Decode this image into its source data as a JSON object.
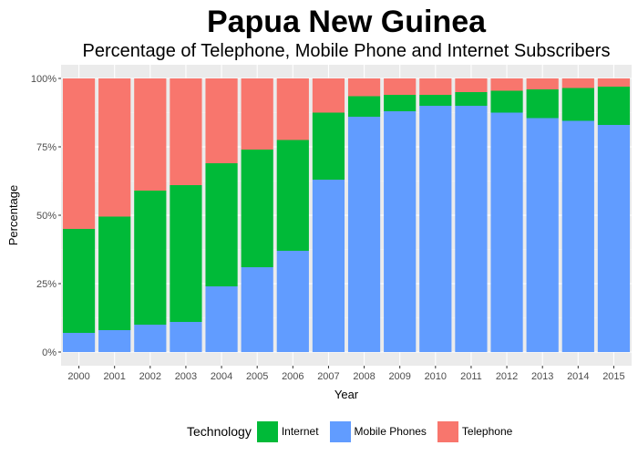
{
  "chart_data": {
    "type": "bar",
    "stacked": true,
    "title": "Papua New Guinea",
    "subtitle": "Percentage of Telephone, Mobile Phone and Internet Subscribers",
    "xlabel": "Year",
    "ylabel": "Percentage",
    "ylim": [
      0,
      1
    ],
    "yticks": [
      "0%",
      "25%",
      "50%",
      "75%",
      "100%"
    ],
    "categories": [
      "2000",
      "2001",
      "2002",
      "2003",
      "2004",
      "2005",
      "2006",
      "2007",
      "2008",
      "2009",
      "2010",
      "2011",
      "2012",
      "2013",
      "2014",
      "2015"
    ],
    "series": [
      {
        "name": "Mobile Phones",
        "color": "#619CFF",
        "values": [
          0.07,
          0.08,
          0.1,
          0.11,
          0.24,
          0.31,
          0.37,
          0.63,
          0.86,
          0.88,
          0.9,
          0.9,
          0.875,
          0.855,
          0.845,
          0.83
        ]
      },
      {
        "name": "Internet",
        "color": "#00BA38",
        "values": [
          0.38,
          0.415,
          0.49,
          0.5,
          0.45,
          0.43,
          0.405,
          0.245,
          0.075,
          0.06,
          0.04,
          0.05,
          0.08,
          0.105,
          0.12,
          0.14
        ]
      },
      {
        "name": "Telephone",
        "color": "#F8766D",
        "values": [
          0.55,
          0.505,
          0.41,
          0.39,
          0.31,
          0.26,
          0.225,
          0.125,
          0.065,
          0.06,
          0.06,
          0.05,
          0.045,
          0.04,
          0.035,
          0.03
        ]
      }
    ],
    "legend": {
      "title": "Technology",
      "position": "bottom",
      "order": [
        "Internet",
        "Mobile Phones",
        "Telephone"
      ]
    },
    "grid": true
  }
}
